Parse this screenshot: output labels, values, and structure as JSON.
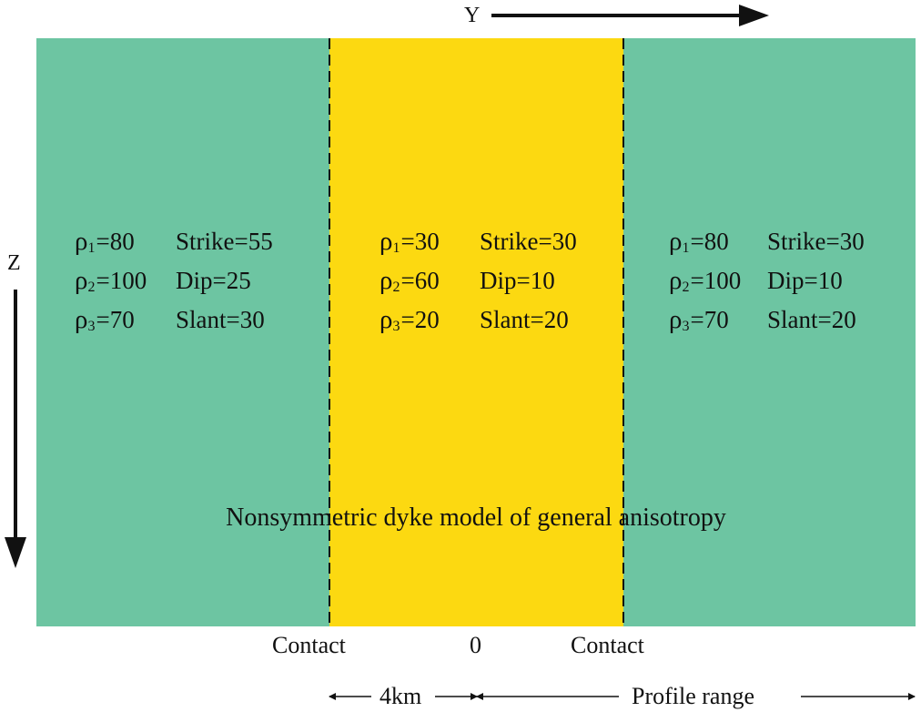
{
  "axes": {
    "y_label": "Y",
    "z_label": "Z"
  },
  "colors": {
    "side_blocks": "#6dc5a2",
    "dyke": "#fcd911",
    "contact_line": "#111111"
  },
  "left_block": {
    "rho1": "=80",
    "rho2": "=100",
    "rho3": "=70",
    "strike": "Strike=55",
    "dip": "Dip=25",
    "slant": "Slant=30"
  },
  "dyke": {
    "rho1": "=30",
    "rho2": "=60",
    "rho3": "=20",
    "strike": "Strike=30",
    "dip": "Dip=10",
    "slant": "Slant=20"
  },
  "right_block": {
    "rho1": "=80",
    "rho2": "=100",
    "rho3": "=70",
    "strike": "Strike=30",
    "dip": "Dip=10",
    "slant": "Slant=20"
  },
  "symbols": {
    "rho": "ρ",
    "sub1": "1",
    "sub2": "2",
    "sub3": "3"
  },
  "caption": "Nonsymmetric dyke model of general anisotropy",
  "bottom": {
    "contact_left": "Contact",
    "origin": "0",
    "contact_right": "Contact",
    "width_label": "4km",
    "profile_label": "Profile range"
  }
}
